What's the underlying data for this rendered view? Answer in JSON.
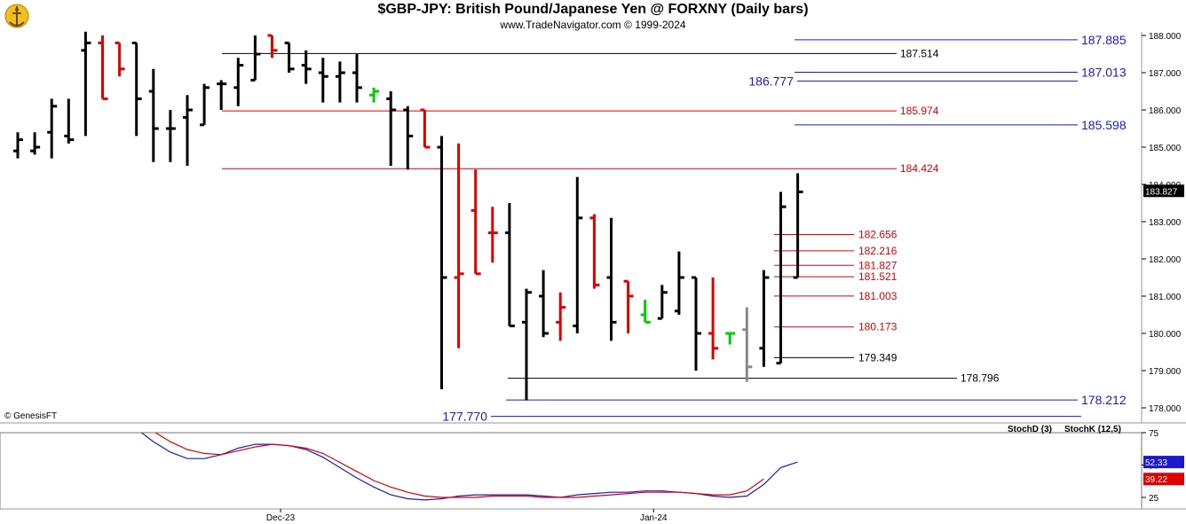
{
  "header": {
    "title": "$GBP-JPY:  British Pound/Japanese Yen @ FORXNY  (Daily bars)",
    "subtitle": "www.TradeNavigator.com © 1999-2024"
  },
  "watermark": "© GenesisFT",
  "colors": {
    "up_bar": "#000000",
    "down_bar": "#e00000",
    "green_bar": "#00cc00",
    "gray_bar": "#888888",
    "blue_level": "#1a1acc",
    "red_level": "#e00000",
    "black_level": "#000000",
    "stoch_d": "#e00000",
    "stoch_k": "#1a1acc"
  },
  "chart_data": [
    {
      "type": "ohlc",
      "y_axis": {
        "min": 177.7,
        "max": 188.1,
        "ticks": [
          "188.000",
          "187.000",
          "186.000",
          "185.000",
          "184.000",
          "183.000",
          "182.000",
          "181.000",
          "180.000",
          "179.000",
          "178.000"
        ]
      },
      "last_price": "183.827",
      "levels_blue": [
        "187.885",
        "187.013",
        "186.777",
        "185.598",
        "178.212",
        "177.770"
      ],
      "levels_red": [
        "185.974",
        "184.424",
        "182.656",
        "182.216",
        "181.827",
        "181.521",
        "181.003",
        "180.173"
      ],
      "levels_black": [
        "187.514",
        "179.349",
        "178.796"
      ],
      "bars": [
        {
          "o": 184.9,
          "h": 185.4,
          "l": 184.7,
          "c": 185.2,
          "col": "k"
        },
        {
          "o": 184.9,
          "h": 185.4,
          "l": 184.8,
          "c": 185.0,
          "col": "k"
        },
        {
          "o": 185.4,
          "h": 186.3,
          "l": 184.7,
          "c": 186.1,
          "col": "k"
        },
        {
          "o": 185.3,
          "h": 186.3,
          "l": 185.1,
          "c": 185.2,
          "col": "k"
        },
        {
          "o": 187.6,
          "h": 188.1,
          "l": 185.3,
          "c": 187.8,
          "col": "k"
        },
        {
          "o": 187.8,
          "h": 188.0,
          "l": 186.3,
          "c": 186.3,
          "col": "r"
        },
        {
          "o": 187.8,
          "h": 187.8,
          "l": 186.9,
          "c": 187.1,
          "col": "r"
        },
        {
          "o": 187.8,
          "h": 187.8,
          "l": 185.3,
          "c": 186.3,
          "col": "k"
        },
        {
          "o": 186.5,
          "h": 187.1,
          "l": 184.6,
          "c": 185.5,
          "col": "k"
        },
        {
          "o": 185.5,
          "h": 186.0,
          "l": 184.6,
          "c": 185.5,
          "col": "k"
        },
        {
          "o": 185.8,
          "h": 186.4,
          "l": 184.5,
          "c": 186.0,
          "col": "k"
        },
        {
          "o": 185.6,
          "h": 186.7,
          "l": 185.6,
          "c": 186.6,
          "col": "k"
        },
        {
          "o": 186.7,
          "h": 186.8,
          "l": 186.0,
          "c": 186.7,
          "col": "k"
        },
        {
          "o": 186.6,
          "h": 187.4,
          "l": 186.1,
          "c": 187.2,
          "col": "k"
        },
        {
          "o": 186.8,
          "h": 188.0,
          "l": 186.8,
          "c": 187.5,
          "col": "k"
        },
        {
          "o": 188.0,
          "h": 188.0,
          "l": 187.4,
          "c": 187.6,
          "col": "r"
        },
        {
          "o": 187.8,
          "h": 187.8,
          "l": 187.0,
          "c": 187.1,
          "col": "k"
        },
        {
          "o": 187.2,
          "h": 187.6,
          "l": 186.7,
          "c": 187.1,
          "col": "k"
        },
        {
          "o": 187.0,
          "h": 187.4,
          "l": 186.2,
          "c": 186.9,
          "col": "k"
        },
        {
          "o": 186.9,
          "h": 187.3,
          "l": 186.2,
          "c": 187.0,
          "col": "k"
        },
        {
          "o": 187.0,
          "h": 187.5,
          "l": 186.2,
          "c": 186.6,
          "col": "k"
        },
        {
          "o": 186.4,
          "h": 186.6,
          "l": 186.2,
          "c": 186.5,
          "col": "g"
        },
        {
          "o": 186.3,
          "h": 186.5,
          "l": 184.5,
          "c": 186.0,
          "col": "k"
        },
        {
          "o": 186.0,
          "h": 186.1,
          "l": 184.4,
          "c": 185.3,
          "col": "k"
        },
        {
          "o": 186.0,
          "h": 186.0,
          "l": 185.0,
          "c": 185.0,
          "col": "r"
        },
        {
          "o": 185.0,
          "h": 185.3,
          "l": 178.5,
          "c": 181.5,
          "col": "k"
        },
        {
          "o": 181.5,
          "h": 185.1,
          "l": 179.6,
          "c": 181.6,
          "col": "r"
        },
        {
          "o": 183.3,
          "h": 184.4,
          "l": 181.6,
          "c": 181.6,
          "col": "r"
        },
        {
          "o": 182.7,
          "h": 183.4,
          "l": 181.9,
          "c": 182.7,
          "col": "r"
        },
        {
          "o": 182.7,
          "h": 183.5,
          "l": 180.2,
          "c": 180.2,
          "col": "k"
        },
        {
          "o": 180.3,
          "h": 181.2,
          "l": 178.2,
          "c": 181.1,
          "col": "k"
        },
        {
          "o": 181.0,
          "h": 181.7,
          "l": 179.9,
          "c": 180.0,
          "col": "k"
        },
        {
          "o": 180.3,
          "h": 181.1,
          "l": 179.8,
          "c": 180.7,
          "col": "r"
        },
        {
          "o": 180.2,
          "h": 184.2,
          "l": 180.0,
          "c": 183.1,
          "col": "k"
        },
        {
          "o": 183.1,
          "h": 183.2,
          "l": 181.2,
          "c": 181.3,
          "col": "r"
        },
        {
          "o": 181.5,
          "h": 183.1,
          "l": 179.8,
          "c": 180.3,
          "col": "k"
        },
        {
          "o": 181.4,
          "h": 181.4,
          "l": 180.0,
          "c": 181.0,
          "col": "r"
        },
        {
          "o": 180.5,
          "h": 180.9,
          "l": 180.3,
          "c": 180.3,
          "col": "g"
        },
        {
          "o": 180.4,
          "h": 181.3,
          "l": 180.4,
          "c": 181.1,
          "col": "k"
        },
        {
          "o": 180.6,
          "h": 182.2,
          "l": 180.5,
          "c": 181.5,
          "col": "k"
        },
        {
          "o": 181.5,
          "h": 181.5,
          "l": 179.0,
          "c": 180.0,
          "col": "k"
        },
        {
          "o": 180.0,
          "h": 181.5,
          "l": 179.3,
          "c": 179.6,
          "col": "r"
        },
        {
          "o": 180.0,
          "h": 180.0,
          "l": 179.7,
          "c": 180.0,
          "col": "g"
        },
        {
          "o": 180.1,
          "h": 180.7,
          "l": 178.7,
          "c": 179.1,
          "col": "gr"
        },
        {
          "o": 179.6,
          "h": 181.7,
          "l": 179.1,
          "c": 181.5,
          "col": "k"
        },
        {
          "o": 179.2,
          "h": 183.8,
          "l": 179.2,
          "c": 183.4,
          "col": "k"
        },
        {
          "o": 181.5,
          "h": 184.3,
          "l": 181.5,
          "c": 183.8,
          "col": "k"
        }
      ]
    },
    {
      "type": "line",
      "title": "",
      "legend": [
        "StochD (3)",
        "StochK (12,5)"
      ],
      "y_ticks": [
        "75",
        "50",
        "25"
      ],
      "y_range": [
        20,
        80
      ],
      "last_values": {
        "k": "52.33",
        "d": "39.22"
      },
      "x_labels": [
        "Dec-23",
        "Jan-24"
      ],
      "x_label_bars": [
        15.5,
        37.5
      ],
      "series": [
        {
          "name": "StochK (12,5)",
          "start_bar": 6,
          "values": [
            88,
            78,
            68,
            60,
            55,
            55,
            58,
            63,
            66,
            66,
            65,
            62,
            56,
            48,
            40,
            33,
            27,
            24,
            23,
            24,
            26,
            27,
            27,
            27,
            27,
            26,
            25,
            27,
            28,
            29,
            29,
            30,
            30,
            29,
            28,
            26,
            25,
            26,
            35,
            48,
            52.33
          ]
        },
        {
          "name": "StochD (3)",
          "start_bar": 7,
          "values": [
            85,
            76,
            68,
            62,
            59,
            58,
            61,
            64,
            66,
            65,
            63,
            59,
            52,
            45,
            38,
            33,
            29,
            26,
            25,
            25,
            25,
            26,
            26,
            26,
            25,
            25,
            25,
            26,
            27,
            28,
            29,
            29,
            29,
            28,
            27,
            27,
            30,
            39.22
          ]
        }
      ]
    }
  ]
}
